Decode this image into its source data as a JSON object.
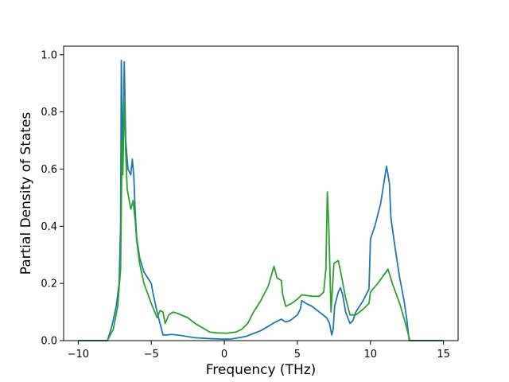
{
  "chart_data": {
    "type": "line",
    "title": "",
    "xlabel": "Frequency (THz)",
    "ylabel": "Partial Density of States",
    "xlim": [
      -11,
      16
    ],
    "ylim": [
      0,
      1.03
    ],
    "xticks": [
      -10,
      -5,
      0,
      5,
      10,
      15
    ],
    "xtick_labels": [
      "−10",
      "−5",
      "0",
      "5",
      "10",
      "15"
    ],
    "yticks": [
      0.0,
      0.2,
      0.4,
      0.6,
      0.8,
      1.0
    ],
    "ytick_labels": [
      "0.0",
      "0.2",
      "0.4",
      "0.6",
      "0.8",
      "1.0"
    ],
    "grid": false,
    "legend": "none",
    "series": [
      {
        "color": "#1f77b4",
        "points": [
          [
            -10,
            0
          ],
          [
            -8,
            0
          ],
          [
            -7.7,
            0.05
          ],
          [
            -7.4,
            0.12
          ],
          [
            -7.2,
            0.2
          ],
          [
            -7.1,
            0.4
          ],
          [
            -7.05,
            0.98
          ],
          [
            -6.95,
            0.6
          ],
          [
            -6.85,
            0.975
          ],
          [
            -6.75,
            0.7
          ],
          [
            -6.6,
            0.6
          ],
          [
            -6.4,
            0.58
          ],
          [
            -6.3,
            0.635
          ],
          [
            -6.2,
            0.58
          ],
          [
            -6.1,
            0.45
          ],
          [
            -6.0,
            0.36
          ],
          [
            -5.8,
            0.29
          ],
          [
            -5.5,
            0.24
          ],
          [
            -5.0,
            0.2
          ],
          [
            -4.9,
            0.17
          ],
          [
            -4.6,
            0.1
          ],
          [
            -4.3,
            0.04
          ],
          [
            -4.2,
            0.02
          ],
          [
            -3.9,
            0.02
          ],
          [
            -3.6,
            0.022
          ],
          [
            -3.0,
            0.018
          ],
          [
            -2.0,
            0.01
          ],
          [
            -1.0,
            0.007
          ],
          [
            0,
            0.005
          ],
          [
            0.5,
            0.006
          ],
          [
            1.0,
            0.01
          ],
          [
            1.5,
            0.015
          ],
          [
            2.0,
            0.025
          ],
          [
            2.5,
            0.035
          ],
          [
            3.0,
            0.05
          ],
          [
            3.5,
            0.065
          ],
          [
            3.9,
            0.075
          ],
          [
            4.2,
            0.065
          ],
          [
            4.5,
            0.07
          ],
          [
            5.0,
            0.09
          ],
          [
            5.2,
            0.11
          ],
          [
            5.3,
            0.14
          ],
          [
            5.6,
            0.13
          ],
          [
            6.0,
            0.12
          ],
          [
            6.5,
            0.1
          ],
          [
            7.0,
            0.08
          ],
          [
            7.2,
            0.06
          ],
          [
            7.35,
            0.02
          ],
          [
            7.45,
            0.04
          ],
          [
            7.55,
            0.12
          ],
          [
            7.8,
            0.17
          ],
          [
            7.95,
            0.185
          ],
          [
            8.1,
            0.16
          ],
          [
            8.3,
            0.1
          ],
          [
            8.6,
            0.06
          ],
          [
            8.8,
            0.07
          ],
          [
            9.0,
            0.1
          ],
          [
            9.5,
            0.14
          ],
          [
            9.9,
            0.18
          ],
          [
            10.0,
            0.355
          ],
          [
            10.3,
            0.4
          ],
          [
            10.7,
            0.48
          ],
          [
            11.1,
            0.61
          ],
          [
            11.3,
            0.55
          ],
          [
            11.4,
            0.43
          ],
          [
            11.7,
            0.32
          ],
          [
            12.0,
            0.22
          ],
          [
            12.3,
            0.14
          ],
          [
            12.5,
            0.07
          ],
          [
            12.65,
            0
          ],
          [
            15,
            0
          ]
        ]
      },
      {
        "color": "#2ca02c",
        "points": [
          [
            -10,
            0
          ],
          [
            -8,
            0
          ],
          [
            -7.6,
            0.04
          ],
          [
            -7.3,
            0.12
          ],
          [
            -7.1,
            0.25
          ],
          [
            -7.0,
            0.7
          ],
          [
            -6.95,
            0.58
          ],
          [
            -6.85,
            0.85
          ],
          [
            -6.75,
            0.66
          ],
          [
            -6.65,
            0.53
          ],
          [
            -6.4,
            0.46
          ],
          [
            -6.25,
            0.49
          ],
          [
            -6.1,
            0.42
          ],
          [
            -6.0,
            0.35
          ],
          [
            -5.8,
            0.27
          ],
          [
            -5.5,
            0.2
          ],
          [
            -5.0,
            0.13
          ],
          [
            -4.6,
            0.08
          ],
          [
            -4.4,
            0.105
          ],
          [
            -4.2,
            0.1
          ],
          [
            -4.05,
            0.06
          ],
          [
            -3.8,
            0.09
          ],
          [
            -3.5,
            0.1
          ],
          [
            -3.2,
            0.095
          ],
          [
            -2.5,
            0.08
          ],
          [
            -2.0,
            0.06
          ],
          [
            -1.5,
            0.045
          ],
          [
            -1.0,
            0.03
          ],
          [
            -0.5,
            0.027
          ],
          [
            0.2,
            0.026
          ],
          [
            0.8,
            0.03
          ],
          [
            1.2,
            0.04
          ],
          [
            1.6,
            0.06
          ],
          [
            2.0,
            0.1
          ],
          [
            2.5,
            0.14
          ],
          [
            3.0,
            0.19
          ],
          [
            3.4,
            0.26
          ],
          [
            3.6,
            0.22
          ],
          [
            3.9,
            0.21
          ],
          [
            4.0,
            0.16
          ],
          [
            4.2,
            0.12
          ],
          [
            4.6,
            0.13
          ],
          [
            5.0,
            0.145
          ],
          [
            5.3,
            0.16
          ],
          [
            5.6,
            0.158
          ],
          [
            6.0,
            0.155
          ],
          [
            6.5,
            0.155
          ],
          [
            6.8,
            0.17
          ],
          [
            6.95,
            0.25
          ],
          [
            7.05,
            0.52
          ],
          [
            7.15,
            0.4
          ],
          [
            7.3,
            0.1
          ],
          [
            7.5,
            0.27
          ],
          [
            7.8,
            0.28
          ],
          [
            8.0,
            0.23
          ],
          [
            8.3,
            0.15
          ],
          [
            8.6,
            0.09
          ],
          [
            9.0,
            0.09
          ],
          [
            9.5,
            0.11
          ],
          [
            9.9,
            0.13
          ],
          [
            10.0,
            0.17
          ],
          [
            10.5,
            0.2
          ],
          [
            11.0,
            0.235
          ],
          [
            11.2,
            0.25
          ],
          [
            11.5,
            0.2
          ],
          [
            12.0,
            0.13
          ],
          [
            12.4,
            0.06
          ],
          [
            12.6,
            0.02
          ],
          [
            12.7,
            0
          ],
          [
            15,
            0
          ]
        ]
      }
    ]
  }
}
